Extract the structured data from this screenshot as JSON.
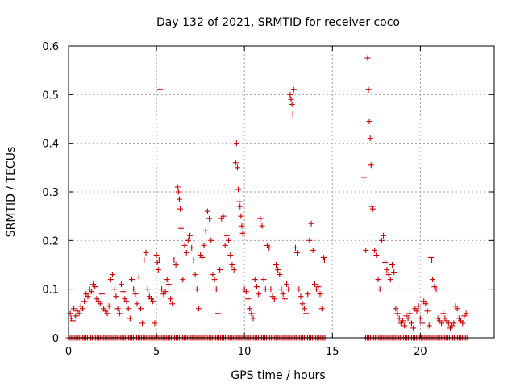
{
  "chart_data": {
    "type": "scatter",
    "title": "Day 132 of 2021, SRMTID for receiver coco",
    "xlabel": "GPS time / hours",
    "ylabel": "SRMTID / TECUs",
    "xlim": [
      0,
      24.2
    ],
    "ylim": [
      0,
      0.6
    ],
    "x_ticks": [
      0,
      5,
      10,
      15,
      20
    ],
    "x_tick_labels": [
      "0",
      "5",
      "10",
      "15",
      "20"
    ],
    "y_ticks": [
      0,
      0.1,
      0.2,
      0.3,
      0.4,
      0.5,
      0.6
    ],
    "y_tick_labels": [
      "0",
      "0.1",
      "0.2",
      "0.3",
      "0.4",
      "0.5",
      "0.6"
    ],
    "grid": true,
    "marker": "+",
    "marker_color": "#cc0000",
    "series": [
      {
        "name": "SRMTID",
        "points": [
          [
            0.1,
            0.05
          ],
          [
            0.15,
            0.04
          ],
          [
            0.25,
            0.035
          ],
          [
            0.3,
            0.06
          ],
          [
            0.4,
            0.045
          ],
          [
            0.5,
            0.055
          ],
          [
            0.6,
            0.05
          ],
          [
            0.7,
            0.065
          ],
          [
            0.8,
            0.06
          ],
          [
            0.9,
            0.075
          ],
          [
            1.0,
            0.09
          ],
          [
            1.1,
            0.085
          ],
          [
            1.2,
            0.1
          ],
          [
            1.3,
            0.095
          ],
          [
            1.4,
            0.11
          ],
          [
            1.5,
            0.105
          ],
          [
            1.6,
            0.08
          ],
          [
            1.7,
            0.075
          ],
          [
            1.8,
            0.07
          ],
          [
            1.9,
            0.09
          ],
          [
            2.0,
            0.06
          ],
          [
            2.1,
            0.055
          ],
          [
            2.2,
            0.05
          ],
          [
            2.3,
            0.065
          ],
          [
            2.4,
            0.12
          ],
          [
            2.5,
            0.13
          ],
          [
            2.6,
            0.1
          ],
          [
            2.7,
            0.085
          ],
          [
            2.8,
            0.06
          ],
          [
            2.9,
            0.05
          ],
          [
            3.0,
            0.11
          ],
          [
            3.1,
            0.095
          ],
          [
            3.2,
            0.08
          ],
          [
            3.3,
            0.075
          ],
          [
            3.4,
            0.06
          ],
          [
            3.5,
            0.04
          ],
          [
            3.6,
            0.12
          ],
          [
            3.7,
            0.1
          ],
          [
            3.8,
            0.09
          ],
          [
            3.9,
            0.07
          ],
          [
            4.0,
            0.125
          ],
          [
            4.1,
            0.06
          ],
          [
            4.2,
            0.03
          ],
          [
            4.3,
            0.16
          ],
          [
            4.4,
            0.175
          ],
          [
            4.5,
            0.1
          ],
          [
            4.6,
            0.085
          ],
          [
            4.7,
            0.08
          ],
          [
            4.8,
            0.075
          ],
          [
            4.9,
            0.03
          ],
          [
            5.0,
            0.17
          ],
          [
            5.05,
            0.155
          ],
          [
            5.1,
            0.14
          ],
          [
            5.15,
            0.16
          ],
          [
            5.2,
            0.51
          ],
          [
            5.3,
            0.1
          ],
          [
            5.4,
            0.09
          ],
          [
            5.5,
            0.095
          ],
          [
            5.6,
            0.12
          ],
          [
            5.7,
            0.11
          ],
          [
            5.8,
            0.08
          ],
          [
            5.9,
            0.07
          ],
          [
            6.0,
            0.16
          ],
          [
            6.1,
            0.15
          ],
          [
            6.2,
            0.31
          ],
          [
            6.25,
            0.3
          ],
          [
            6.3,
            0.285
          ],
          [
            6.35,
            0.265
          ],
          [
            6.4,
            0.225
          ],
          [
            6.5,
            0.12
          ],
          [
            6.6,
            0.19
          ],
          [
            6.7,
            0.175
          ],
          [
            6.8,
            0.2
          ],
          [
            6.9,
            0.21
          ],
          [
            7.0,
            0.185
          ],
          [
            7.1,
            0.16
          ],
          [
            7.2,
            0.13
          ],
          [
            7.3,
            0.1
          ],
          [
            7.4,
            0.06
          ],
          [
            7.5,
            0.17
          ],
          [
            7.6,
            0.165
          ],
          [
            7.7,
            0.19
          ],
          [
            7.8,
            0.22
          ],
          [
            7.9,
            0.26
          ],
          [
            8.0,
            0.245
          ],
          [
            8.1,
            0.2
          ],
          [
            8.2,
            0.13
          ],
          [
            8.3,
            0.12
          ],
          [
            8.4,
            0.1
          ],
          [
            8.5,
            0.05
          ],
          [
            8.6,
            0.14
          ],
          [
            8.7,
            0.245
          ],
          [
            8.8,
            0.25
          ],
          [
            8.9,
            0.19
          ],
          [
            9.0,
            0.21
          ],
          [
            9.1,
            0.2
          ],
          [
            9.2,
            0.17
          ],
          [
            9.3,
            0.15
          ],
          [
            9.4,
            0.14
          ],
          [
            9.5,
            0.36
          ],
          [
            9.55,
            0.4
          ],
          [
            9.6,
            0.35
          ],
          [
            9.65,
            0.305
          ],
          [
            9.7,
            0.28
          ],
          [
            9.75,
            0.27
          ],
          [
            9.8,
            0.25
          ],
          [
            9.85,
            0.23
          ],
          [
            9.9,
            0.215
          ],
          [
            10.0,
            0.1
          ],
          [
            10.1,
            0.095
          ],
          [
            10.2,
            0.08
          ],
          [
            10.3,
            0.06
          ],
          [
            10.4,
            0.05
          ],
          [
            10.5,
            0.04
          ],
          [
            10.6,
            0.12
          ],
          [
            10.7,
            0.105
          ],
          [
            10.8,
            0.09
          ],
          [
            10.9,
            0.245
          ],
          [
            11.0,
            0.23
          ],
          [
            11.1,
            0.12
          ],
          [
            11.2,
            0.1
          ],
          [
            11.3,
            0.19
          ],
          [
            11.4,
            0.185
          ],
          [
            11.5,
            0.1
          ],
          [
            11.6,
            0.085
          ],
          [
            11.7,
            0.08
          ],
          [
            11.8,
            0.15
          ],
          [
            11.9,
            0.14
          ],
          [
            12.0,
            0.13
          ],
          [
            12.1,
            0.1
          ],
          [
            12.2,
            0.09
          ],
          [
            12.3,
            0.08
          ],
          [
            12.4,
            0.11
          ],
          [
            12.5,
            0.1
          ],
          [
            12.6,
            0.5
          ],
          [
            12.65,
            0.49
          ],
          [
            12.7,
            0.48
          ],
          [
            12.75,
            0.46
          ],
          [
            12.8,
            0.51
          ],
          [
            12.9,
            0.185
          ],
          [
            13.0,
            0.175
          ],
          [
            13.1,
            0.1
          ],
          [
            13.2,
            0.085
          ],
          [
            13.3,
            0.07
          ],
          [
            13.4,
            0.06
          ],
          [
            13.5,
            0.05
          ],
          [
            13.6,
            0.09
          ],
          [
            13.7,
            0.2
          ],
          [
            13.8,
            0.235
          ],
          [
            13.9,
            0.18
          ],
          [
            14.0,
            0.11
          ],
          [
            14.1,
            0.1
          ],
          [
            14.2,
            0.105
          ],
          [
            14.3,
            0.09
          ],
          [
            14.4,
            0.06
          ],
          [
            14.5,
            0.165
          ],
          [
            14.55,
            0.16
          ],
          [
            16.8,
            0.33
          ],
          [
            16.9,
            0.18
          ],
          [
            17.0,
            0.575
          ],
          [
            17.05,
            0.51
          ],
          [
            17.1,
            0.445
          ],
          [
            17.15,
            0.41
          ],
          [
            17.2,
            0.355
          ],
          [
            17.25,
            0.27
          ],
          [
            17.3,
            0.265
          ],
          [
            17.4,
            0.18
          ],
          [
            17.5,
            0.17
          ],
          [
            17.6,
            0.12
          ],
          [
            17.7,
            0.1
          ],
          [
            17.8,
            0.2
          ],
          [
            17.9,
            0.21
          ],
          [
            18.0,
            0.155
          ],
          [
            18.1,
            0.14
          ],
          [
            18.2,
            0.13
          ],
          [
            18.3,
            0.12
          ],
          [
            18.4,
            0.15
          ],
          [
            18.5,
            0.135
          ],
          [
            18.6,
            0.06
          ],
          [
            18.7,
            0.05
          ],
          [
            18.8,
            0.04
          ],
          [
            18.9,
            0.03
          ],
          [
            19.0,
            0.035
          ],
          [
            19.1,
            0.025
          ],
          [
            19.2,
            0.045
          ],
          [
            19.3,
            0.04
          ],
          [
            19.4,
            0.05
          ],
          [
            19.5,
            0.03
          ],
          [
            19.6,
            0.02
          ],
          [
            19.7,
            0.06
          ],
          [
            19.8,
            0.055
          ],
          [
            19.9,
            0.065
          ],
          [
            20.0,
            0.04
          ],
          [
            20.1,
            0.03
          ],
          [
            20.2,
            0.075
          ],
          [
            20.3,
            0.07
          ],
          [
            20.4,
            0.055
          ],
          [
            20.5,
            0.025
          ],
          [
            20.6,
            0.165
          ],
          [
            20.65,
            0.16
          ],
          [
            20.7,
            0.12
          ],
          [
            20.8,
            0.105
          ],
          [
            20.9,
            0.1
          ],
          [
            21.0,
            0.04
          ],
          [
            21.1,
            0.035
          ],
          [
            21.2,
            0.03
          ],
          [
            21.3,
            0.05
          ],
          [
            21.4,
            0.04
          ],
          [
            21.5,
            0.035
          ],
          [
            21.6,
            0.03
          ],
          [
            21.7,
            0.02
          ],
          [
            21.8,
            0.025
          ],
          [
            21.9,
            0.03
          ],
          [
            22.0,
            0.065
          ],
          [
            22.1,
            0.06
          ],
          [
            22.2,
            0.04
          ],
          [
            22.3,
            0.035
          ],
          [
            22.4,
            0.03
          ],
          [
            22.5,
            0.045
          ],
          [
            22.6,
            0.05
          ]
        ],
        "zero_line_ranges": [
          [
            0.0,
            14.6
          ],
          [
            16.8,
            22.7
          ]
        ],
        "zero_line_step": 0.09
      }
    ]
  }
}
